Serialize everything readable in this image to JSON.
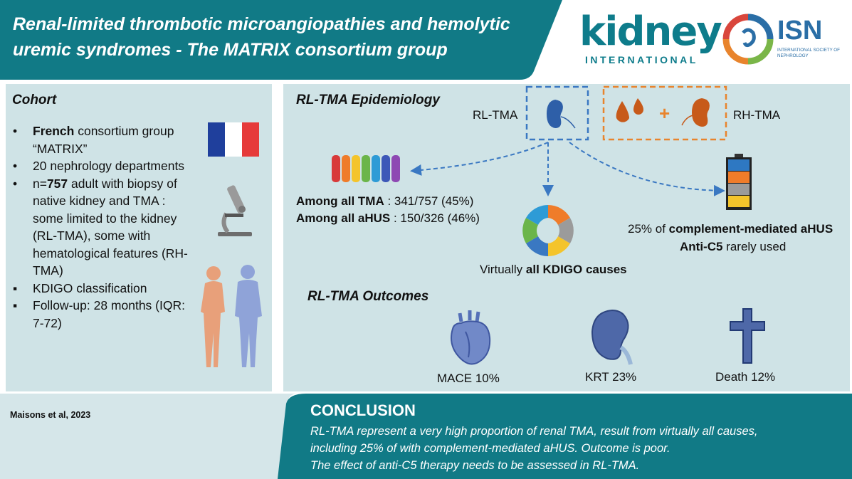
{
  "header": {
    "title": "Renal-limited thrombotic microangiopathies and hemolytic uremic syndromes - The MATRIX consortium group"
  },
  "logos": {
    "kidney_word": "kidney",
    "kidney_sub": "INTERNATIONAL",
    "isn_word": "ISN",
    "isn_sub": "INTERNATIONAL SOCIETY OF NEPHROLOGY"
  },
  "cohort": {
    "title": "Cohort",
    "items": [
      {
        "bullet": "•",
        "bold": "French",
        "text": " consortium group “MATRIX”"
      },
      {
        "bullet": "•",
        "bold": "",
        "text": "20 nephrology departments"
      },
      {
        "bullet": "•",
        "pre": "n=",
        "bold": "757",
        "text": " adult with biopsy of native kidney and TMA : some limited to the kidney (RL-TMA), some with hematological features (RH-TMA)"
      },
      {
        "bullet": "▪",
        "bold": "",
        "text": "KDIGO classification"
      },
      {
        "bullet": "▪",
        "bold": "",
        "text": "Follow-up: 28 months (IQR: 7-72)"
      }
    ]
  },
  "epidemiology": {
    "title": "RL-TMA Epidemiology",
    "rl_label": "RL-TMA",
    "rh_label": "RH-TMA",
    "plus": "+",
    "all_tma_label": "Among all TMA",
    "all_tma_value": " : 341/757 (45%)",
    "all_ahus_label": "Among all aHUS",
    "all_ahus_value": " : 150/326 (46%)",
    "kdigo_pre": "Virtually ",
    "kdigo_bold": "all KDIGO causes",
    "complement_pre": "25% of ",
    "complement_bold": "complement-mediated aHUS",
    "antic5_bold": "Anti-C5",
    "antic5_post": " rarely used"
  },
  "outcomes": {
    "title": "RL-TMA Outcomes",
    "mace": "MACE 10%",
    "krt": "KRT 23%",
    "death": "Death 12%"
  },
  "reference": "Maisons et al, 2023",
  "conclusion": {
    "title": "CONCLUSION",
    "lines": [
      "RL-TMA represent a very high proportion of renal TMA, result from virtually all causes,",
      "including 25% of with complement-mediated aHUS. Outcome is poor.",
      "The effect of anti-C5 therapy needs to be assessed in RL-TMA."
    ]
  },
  "colors": {
    "teal": "#117a86",
    "panel": "#cfe3e6",
    "orange": "#e8842d",
    "dashed_blue": "#3a78c2"
  }
}
